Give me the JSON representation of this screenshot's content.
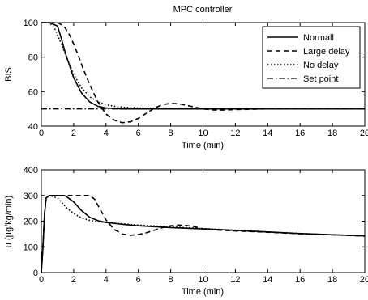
{
  "chart_data": [
    {
      "type": "line",
      "title": "MPC controller",
      "xlabel": "Time (min)",
      "ylabel": "BIS",
      "xlim": [
        0,
        20
      ],
      "ylim": [
        40,
        100
      ],
      "xticks": [
        0,
        2,
        4,
        6,
        8,
        10,
        12,
        14,
        16,
        18,
        20
      ],
      "yticks": [
        40,
        60,
        80,
        100
      ],
      "legend_position": "top-right",
      "series": [
        {
          "name": "Normall",
          "style": "solid",
          "x": [
            0,
            0.5,
            1.0,
            1.2,
            1.5,
            2.0,
            2.5,
            3.0,
            3.5,
            4.0,
            4.5,
            5.0,
            6.0,
            8.0,
            10.0,
            12.0,
            14.0,
            16.0,
            18.0,
            20.0
          ],
          "y": [
            100,
            100,
            98,
            92,
            82,
            68,
            59,
            54,
            51.5,
            50.5,
            50.2,
            50,
            50,
            50,
            50,
            50,
            50,
            50,
            50,
            50
          ]
        },
        {
          "name": "Large delay",
          "style": "dashed",
          "x": [
            0,
            1.0,
            1.4,
            1.8,
            2.2,
            2.6,
            3.0,
            3.5,
            4.0,
            4.5,
            5.0,
            5.5,
            6.0,
            6.5,
            7.0,
            7.5,
            8.0,
            8.5,
            9.0,
            9.5,
            10.0,
            10.5,
            11.0,
            12.0,
            14.0,
            16.0,
            18.0,
            20.0
          ],
          "y": [
            100,
            100,
            98,
            92,
            83,
            73,
            64,
            54,
            47,
            43.5,
            42,
            42.5,
            44.5,
            47.5,
            50.5,
            52.5,
            53.2,
            53,
            52,
            51,
            50,
            49.5,
            49.3,
            49.6,
            50,
            50,
            50,
            50
          ]
        },
        {
          "name": "No delay",
          "style": "dotted",
          "x": [
            0,
            0.5,
            0.8,
            1.0,
            1.3,
            1.6,
            2.0,
            2.5,
            3.0,
            3.5,
            4.0,
            4.5,
            5.0,
            6.0,
            8.0,
            10.0,
            12.0,
            14.0,
            16.0,
            18.0,
            20.0
          ],
          "y": [
            100,
            100,
            97,
            93,
            86,
            79,
            70,
            62,
            57,
            54,
            52.5,
            51.5,
            51,
            50.5,
            50,
            50,
            50,
            50,
            50,
            50,
            50
          ]
        },
        {
          "name": "Set point",
          "style": "dashdot",
          "x": [
            0,
            20
          ],
          "y": [
            50,
            50
          ]
        }
      ]
    },
    {
      "type": "line",
      "title": "",
      "xlabel": "Time (min)",
      "ylabel": "u (µg/kg/min)",
      "xlim": [
        0,
        20
      ],
      "ylim": [
        0,
        400
      ],
      "xticks": [
        0,
        2,
        4,
        6,
        8,
        10,
        12,
        14,
        16,
        18,
        20
      ],
      "yticks": [
        0,
        100,
        200,
        300,
        400
      ],
      "series": [
        {
          "name": "Normall",
          "style": "solid",
          "x": [
            0,
            0.1,
            0.2,
            0.3,
            0.5,
            1.0,
            1.5,
            2.0,
            2.5,
            3.0,
            3.5,
            4.0,
            5.0,
            6.0,
            8.0,
            10.0,
            12.0,
            14.0,
            16.0,
            18.0,
            20.0
          ],
          "y": [
            0,
            100,
            230,
            290,
            300,
            300,
            298,
            275,
            240,
            215,
            202,
            195,
            188,
            182,
            175,
            170,
            164,
            158,
            152,
            147,
            143
          ]
        },
        {
          "name": "Large delay",
          "style": "dashed",
          "x": [
            0,
            0.1,
            0.2,
            0.3,
            0.5,
            1.0,
            2.0,
            3.0,
            3.3,
            3.6,
            4.0,
            4.5,
            5.0,
            5.5,
            6.0,
            6.5,
            7.0,
            7.5,
            8.0,
            8.5,
            9.0,
            9.5,
            10.0,
            11.0,
            12.0,
            14.0,
            16.0,
            18.0,
            20.0
          ],
          "y": [
            0,
            100,
            230,
            290,
            300,
            300,
            300,
            300,
            285,
            250,
            205,
            168,
            150,
            145,
            148,
            155,
            165,
            175,
            182,
            185,
            183,
            178,
            170,
            165,
            162,
            157,
            151,
            147,
            142
          ]
        },
        {
          "name": "No delay",
          "style": "dotted",
          "x": [
            0,
            0.1,
            0.2,
            0.3,
            0.5,
            1.0,
            1.3,
            1.6,
            2.0,
            2.5,
            3.0,
            3.5,
            4.0,
            5.0,
            6.0,
            8.0,
            10.0,
            12.0,
            14.0,
            16.0,
            18.0,
            20.0
          ],
          "y": [
            0,
            100,
            230,
            290,
            300,
            290,
            270,
            250,
            230,
            212,
            203,
            198,
            195,
            190,
            185,
            178,
            171,
            165,
            158,
            152,
            147,
            143
          ]
        }
      ]
    }
  ]
}
